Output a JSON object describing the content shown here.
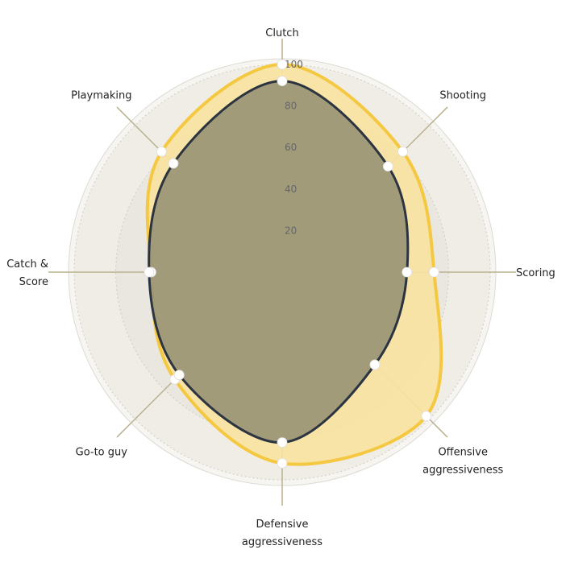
{
  "chart_data": {
    "type": "radar",
    "title": "",
    "axes": [
      {
        "label": [
          "Clutch"
        ]
      },
      {
        "label": [
          "Shooting"
        ]
      },
      {
        "label": [
          "Scoring"
        ]
      },
      {
        "label": [
          "Offensive",
          "aggressiveness"
        ]
      },
      {
        "label": [
          "Defensive",
          "aggressiveness"
        ]
      },
      {
        "label": [
          "Go-to guy"
        ]
      },
      {
        "label": [
          "Catch &",
          "Score"
        ]
      },
      {
        "label": [
          "Playmaking"
        ]
      }
    ],
    "rticks": [
      "20",
      "40",
      "60",
      "80",
      "100"
    ],
    "rlim": [
      0,
      100
    ],
    "grid": true,
    "series": [
      {
        "values": [
          100,
          82,
          73,
          98,
          92,
          73,
          63,
          82
        ],
        "color": "#f5c842",
        "fill": "#f8e3a2"
      },
      {
        "values": [
          92,
          72,
          60,
          63,
          82,
          70,
          64,
          74
        ],
        "color": "#2b3440",
        "fill": "#9c9777"
      }
    ]
  }
}
